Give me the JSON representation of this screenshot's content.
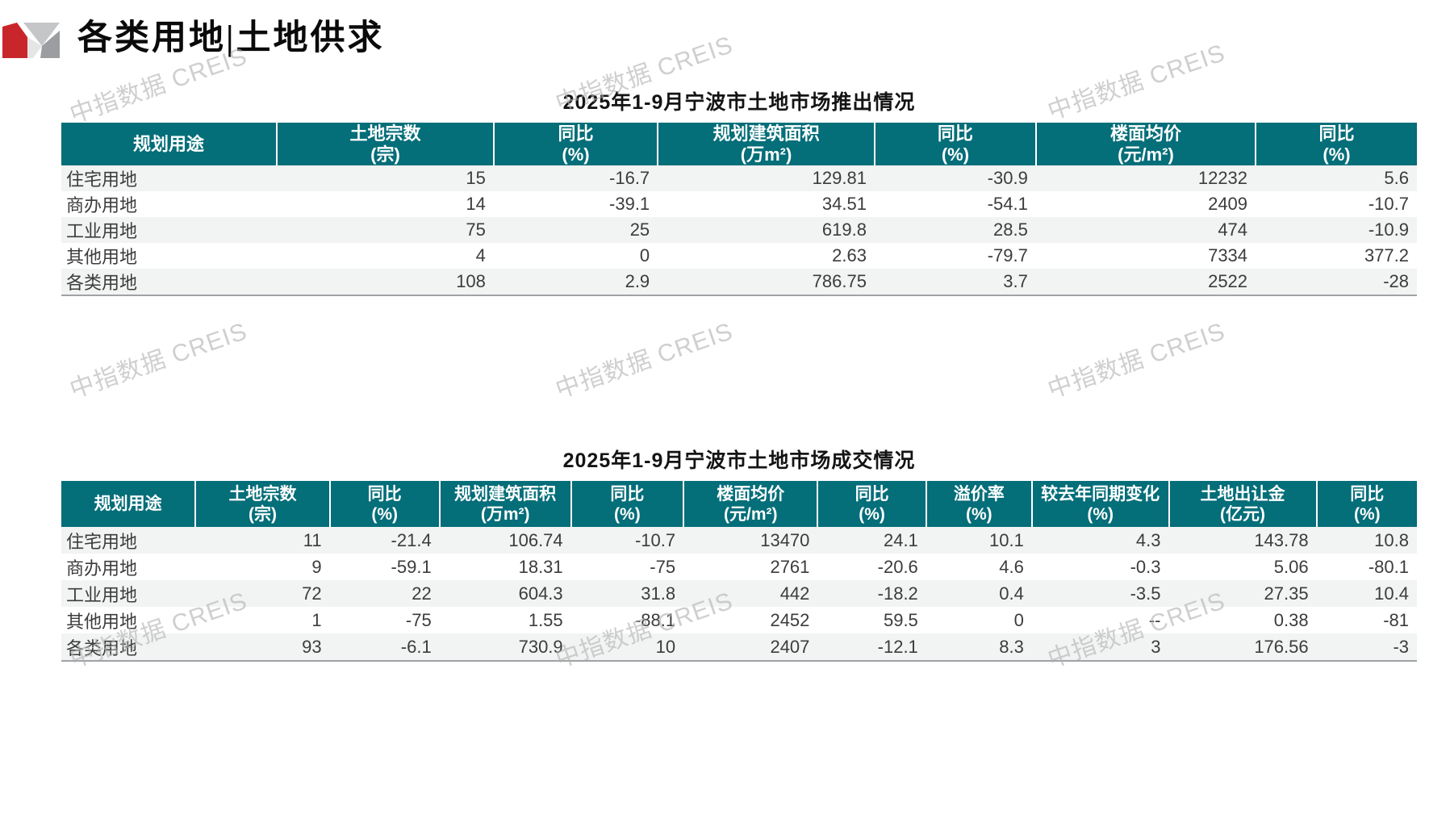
{
  "header": {
    "title": "各类用地|土地供求"
  },
  "watermark": {
    "text": "中指数据 CREIS"
  },
  "colors": {
    "table_header_bg": "#046e79",
    "row_stripe": "#f2f3f3",
    "logo_red": "#c9262b",
    "logo_gray_light": "#c5c6c8",
    "logo_gray_pale": "#e5e5e5",
    "logo_gray_dark": "#9b9da0",
    "watermark_gray": "#c9c9c9"
  },
  "supply_table": {
    "title": "2025年1-9月宁波市土地市场推出情况",
    "columns": [
      {
        "label": "规划用途",
        "unit": ""
      },
      {
        "label": "土地宗数",
        "unit": "(宗)"
      },
      {
        "label": "同比",
        "unit": "(%)"
      },
      {
        "label": "规划建筑面积",
        "unit": "(万m²)"
      },
      {
        "label": "同比",
        "unit": "(%)"
      },
      {
        "label": "楼面均价",
        "unit": "(元/m²)"
      },
      {
        "label": "同比",
        "unit": "(%)"
      }
    ],
    "rows": [
      [
        "住宅用地",
        "15",
        "-16.7",
        "129.81",
        "-30.9",
        "12232",
        "5.6"
      ],
      [
        "商办用地",
        "14",
        "-39.1",
        "34.51",
        "-54.1",
        "2409",
        "-10.7"
      ],
      [
        "工业用地",
        "75",
        "25",
        "619.8",
        "28.5",
        "474",
        "-10.9"
      ],
      [
        "其他用地",
        "4",
        "0",
        "2.63",
        "-79.7",
        "7334",
        "377.2"
      ],
      [
        "各类用地",
        "108",
        "2.9",
        "786.75",
        "3.7",
        "2522",
        "-28"
      ]
    ]
  },
  "transaction_table": {
    "title": "2025年1-9月宁波市土地市场成交情况",
    "columns": [
      {
        "label": "规划用途",
        "unit": ""
      },
      {
        "label": "土地宗数",
        "unit": "(宗)"
      },
      {
        "label": "同比",
        "unit": "(%)"
      },
      {
        "label": "规划建筑面积",
        "unit": "(万m²)"
      },
      {
        "label": "同比",
        "unit": "(%)"
      },
      {
        "label": "楼面均价",
        "unit": "(元/m²)"
      },
      {
        "label": "同比",
        "unit": "(%)"
      },
      {
        "label": "溢价率",
        "unit": "(%)"
      },
      {
        "label": "较去年同期变化",
        "unit": "(%)"
      },
      {
        "label": "土地出让金",
        "unit": "(亿元)"
      },
      {
        "label": "同比",
        "unit": "(%)"
      }
    ],
    "rows": [
      [
        "住宅用地",
        "11",
        "-21.4",
        "106.74",
        "-10.7",
        "13470",
        "24.1",
        "10.1",
        "4.3",
        "143.78",
        "10.8"
      ],
      [
        "商办用地",
        "9",
        "-59.1",
        "18.31",
        "-75",
        "2761",
        "-20.6",
        "4.6",
        "-0.3",
        "5.06",
        "-80.1"
      ],
      [
        "工业用地",
        "72",
        "22",
        "604.3",
        "31.8",
        "442",
        "-18.2",
        "0.4",
        "-3.5",
        "27.35",
        "10.4"
      ],
      [
        "其他用地",
        "1",
        "-75",
        "1.55",
        "-88.1",
        "2452",
        "59.5",
        "0",
        "--",
        "0.38",
        "-81"
      ],
      [
        "各类用地",
        "93",
        "-6.1",
        "730.9",
        "10",
        "2407",
        "-12.1",
        "8.3",
        "3",
        "176.56",
        "-3"
      ]
    ]
  }
}
